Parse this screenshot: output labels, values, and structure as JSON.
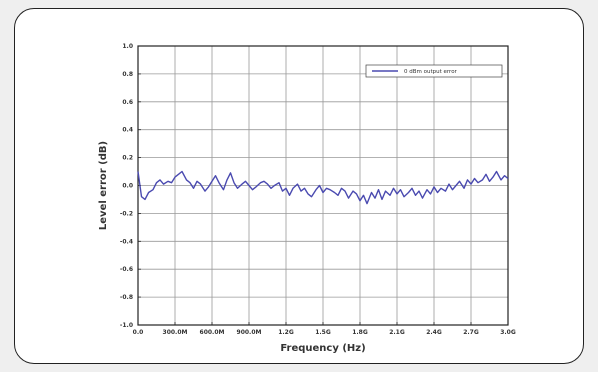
{
  "chart_data": {
    "type": "line",
    "title": "",
    "xlabel": "Frequency (Hz)",
    "ylabel": "Level error (dB)",
    "xlim": [
      0,
      4.2
    ],
    "ylim": [
      -1.0,
      1.0
    ],
    "x_tick_labels": [
      "0.0",
      "300.0M",
      "600.0M",
      "900.0M",
      "1.2G",
      "1.5G",
      "1.8G",
      "2.1G",
      "2.4G",
      "2.7G",
      "3.0G"
    ],
    "y_tick_labels": [
      "1.0",
      "0.8",
      "0.6",
      "0.4",
      "0.2",
      "0.0",
      "-0.2",
      "-0.4",
      "-0.6",
      "-0.8",
      "-1.0"
    ],
    "grid": true,
    "legend_position": "top-right",
    "colors": {
      "series": "#4a4ab0",
      "grid": "#999999",
      "frame": "#222222"
    },
    "series": [
      {
        "name": "0 dBm output error",
        "x": [
          0.0,
          0.04,
          0.08,
          0.12,
          0.17,
          0.21,
          0.25,
          0.29,
          0.34,
          0.38,
          0.42,
          0.46,
          0.5,
          0.55,
          0.59,
          0.63,
          0.67,
          0.71,
          0.76,
          0.8,
          0.84,
          0.88,
          0.92,
          0.97,
          1.01,
          1.05,
          1.09,
          1.13,
          1.18,
          1.22,
          1.26,
          1.3,
          1.34,
          1.39,
          1.43,
          1.47,
          1.51,
          1.55,
          1.6,
          1.64,
          1.68,
          1.72,
          1.76,
          1.81,
          1.85,
          1.89,
          1.93,
          1.97,
          2.02,
          2.06,
          2.1,
          2.14,
          2.18,
          2.23,
          2.27,
          2.31,
          2.35,
          2.39,
          2.44,
          2.48,
          2.52,
          2.56,
          2.6,
          2.65,
          2.69,
          2.73,
          2.77,
          2.81,
          2.86,
          2.9,
          2.94,
          2.98,
          3.02,
          3.07,
          3.11,
          3.15,
          3.19,
          3.23,
          3.28,
          3.32,
          3.36,
          3.4,
          3.44,
          3.49,
          3.53,
          3.57,
          3.61,
          3.65,
          3.7,
          3.74,
          3.78,
          3.82,
          3.86,
          3.91,
          3.95,
          3.99,
          4.03,
          4.07,
          4.12,
          4.16,
          4.2
        ],
        "y": [
          0.1,
          -0.08,
          -0.1,
          -0.05,
          -0.03,
          0.02,
          0.04,
          0.01,
          0.03,
          0.02,
          0.06,
          0.08,
          0.1,
          0.04,
          0.02,
          -0.02,
          0.03,
          0.01,
          -0.04,
          -0.01,
          0.03,
          0.07,
          0.02,
          -0.03,
          0.04,
          0.09,
          0.02,
          -0.02,
          0.01,
          0.03,
          0.0,
          -0.03,
          -0.01,
          0.02,
          0.03,
          0.01,
          -0.02,
          0.0,
          0.02,
          -0.04,
          -0.02,
          -0.07,
          -0.02,
          0.01,
          -0.04,
          -0.02,
          -0.06,
          -0.08,
          -0.03,
          0.0,
          -0.05,
          -0.02,
          -0.03,
          -0.05,
          -0.07,
          -0.02,
          -0.04,
          -0.09,
          -0.04,
          -0.06,
          -0.11,
          -0.07,
          -0.13,
          -0.05,
          -0.09,
          -0.03,
          -0.1,
          -0.04,
          -0.07,
          -0.02,
          -0.06,
          -0.03,
          -0.08,
          -0.05,
          -0.02,
          -0.07,
          -0.04,
          -0.09,
          -0.03,
          -0.06,
          -0.01,
          -0.05,
          -0.02,
          -0.04,
          0.01,
          -0.03,
          0.0,
          0.03,
          -0.02,
          0.04,
          0.01,
          0.05,
          0.02,
          0.04,
          0.08,
          0.03,
          0.06,
          0.1,
          0.04,
          0.07,
          0.05
        ]
      }
    ]
  }
}
